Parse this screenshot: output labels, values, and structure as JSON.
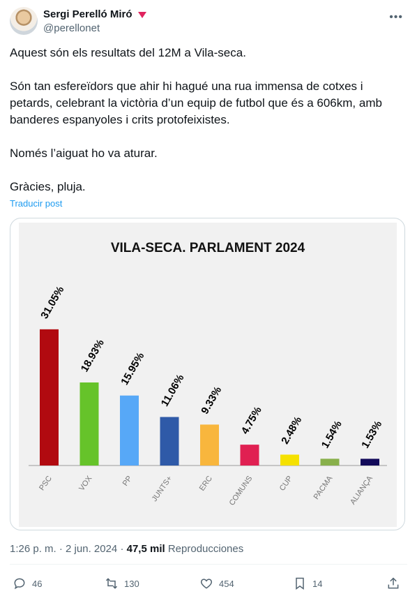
{
  "tweet": {
    "author_name": "Sergi Perelló Miró",
    "handle": "@perellonet",
    "more_icon": "more-icon",
    "paragraphs": [
      "Aquest són els resultats del 12M a Vila-seca.",
      "Són tan esfereïdors que ahir hi hagué una rua immensa de cotxes i petards, celebrant la victòria d’un equip de futbol que és a 606km, amb banderes espanyoles i crits protofeixistes.",
      "Només l’aiguat ho va aturar.",
      "Gràcies, pluja."
    ],
    "translate_label": "Traducir post",
    "time": "1:26 p. m.",
    "date": "2 jun. 2024",
    "views_count": "47,5 mil",
    "views_label": "Reproducciones"
  },
  "actions": {
    "replies": "46",
    "reposts": "130",
    "likes": "454",
    "bookmarks": "14"
  },
  "colors": {
    "link": "#1d9bf0",
    "secondary_text": "#536471",
    "verified_badge": "#e0245e"
  },
  "chart_data": {
    "type": "bar",
    "title": "VILA-SECA. PARLAMENT 2024",
    "xlabel": "",
    "ylabel": "",
    "categories": [
      "PSC",
      "VOX",
      "PP",
      "JUNTS+",
      "ERC",
      "COMUNS",
      "CUP",
      "PACMA",
      "ALIANÇA"
    ],
    "values": [
      31.05,
      18.93,
      15.95,
      11.06,
      9.33,
      4.75,
      2.48,
      1.54,
      1.53
    ],
    "labels": [
      "31.05%",
      "18.93%",
      "15.95%",
      "11.06%",
      "9.33%",
      "4.75%",
      "2.48%",
      "1.54%",
      "1.53%"
    ],
    "colors": [
      "#b10a10",
      "#66c32a",
      "#57a8f7",
      "#2f5aa8",
      "#f8b63d",
      "#e02052",
      "#f5e100",
      "#88b04b",
      "#120a5a"
    ],
    "ylim": [
      0,
      35
    ],
    "grid": false,
    "legend": "none"
  }
}
